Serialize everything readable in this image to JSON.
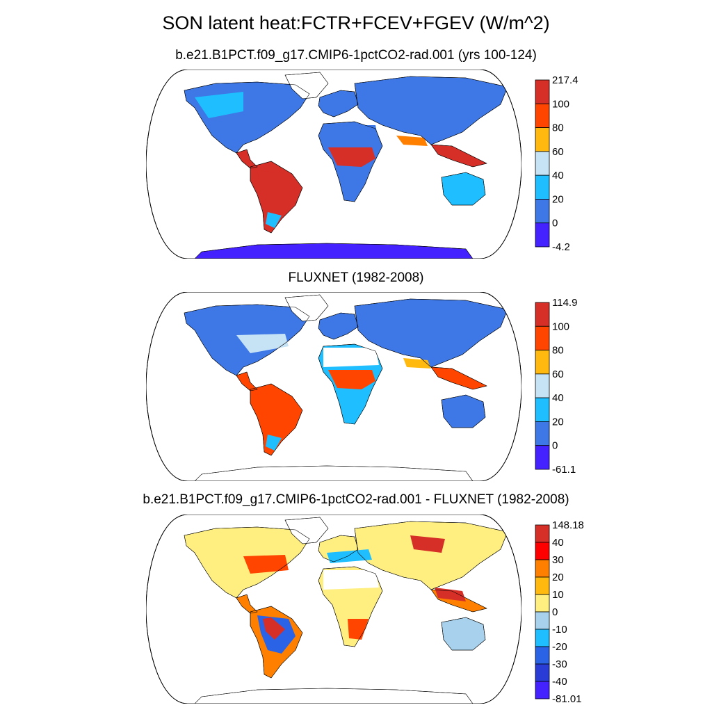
{
  "title": "SON latent heat:FCTR+FCEV+FGEV (W/m^2)",
  "colors": {
    "red_dark": "#d62f27",
    "red_orange": "#ff4500",
    "orange": "#ff8000",
    "amber": "#ffb90f",
    "pale_blue": "#c6e2f5",
    "sky_blue": "#1fbfff",
    "royal_blue": "#3e78e6",
    "violet_blue": "#4422ff",
    "yellow": "#ffef80",
    "light_blue": "#a7d1ec",
    "blue_mid": "#2b63e6",
    "blue_dark": "#2a3cd6",
    "red_pure": "#ff0000",
    "white": "#ffffff"
  },
  "panels": [
    {
      "id": "model",
      "title": "b.e21.B1PCT.f09_g17.CMIP6-1pctCO2-rad.001 (yrs 100-124)",
      "colorbar": {
        "labels": [
          "217.4",
          "100",
          "80",
          "60",
          "40",
          "20",
          "0",
          "-4.2"
        ],
        "colors": [
          "#d62f27",
          "#ff4500",
          "#ffb90f",
          "#c6e2f5",
          "#1fbfff",
          "#3e78e6",
          "#4422ff"
        ]
      }
    },
    {
      "id": "obs",
      "title": "FLUXNET (1982-2008)",
      "colorbar": {
        "labels": [
          "114.9",
          "100",
          "80",
          "60",
          "40",
          "20",
          "0",
          "-61.1"
        ],
        "colors": [
          "#d62f27",
          "#ff4500",
          "#ffb90f",
          "#c6e2f5",
          "#1fbfff",
          "#3e78e6",
          "#4422ff"
        ]
      }
    },
    {
      "id": "diff",
      "title": "b.e21.B1PCT.f09_g17.CMIP6-1pctCO2-rad.001 - FLUXNET (1982-2008)",
      "colorbar": {
        "labels": [
          "148.18",
          "40",
          "30",
          "20",
          "10",
          "0",
          "-10",
          "-20",
          "-30",
          "-40",
          "-81.01"
        ],
        "colors": [
          "#d62f27",
          "#ff0000",
          "#ff8000",
          "#ffb90f",
          "#ffef80",
          "#a7d1ec",
          "#1fbfff",
          "#2b63e6",
          "#2a3cd6",
          "#4422ff"
        ]
      }
    }
  ]
}
